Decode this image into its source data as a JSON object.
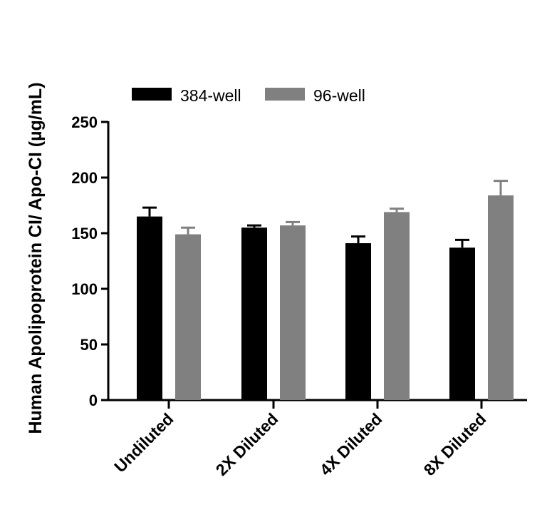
{
  "chart_data": {
    "type": "bar",
    "title": "",
    "xlabel": "",
    "ylabel": "Human Apolipoprotein CI/ Apo-CI (µg/mL)",
    "categories": [
      "Undiluted",
      "2X Diluted",
      "4X Diluted",
      "8X Diluted"
    ],
    "ylim": [
      0,
      250
    ],
    "yticks": [
      "0",
      "50",
      "100",
      "150",
      "200",
      "250"
    ],
    "legend_position": "top",
    "grid": false,
    "series": [
      {
        "name": "384-well",
        "color": "#000000",
        "values": [
          165,
          155,
          141,
          137
        ],
        "errors": [
          8,
          2,
          6,
          7
        ]
      },
      {
        "name": "96-well",
        "color": "#808080",
        "values": [
          149,
          157,
          169,
          184
        ],
        "errors": [
          6,
          3,
          3,
          13
        ]
      }
    ]
  }
}
